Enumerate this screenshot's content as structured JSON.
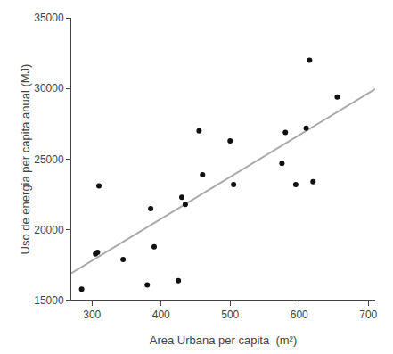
{
  "chart_data": {
    "type": "scatter",
    "xlabel": "Area Urbana per capita  (m²)",
    "ylabel": "Uso de energia per capita anual (MJ)",
    "series": [
      {
        "type": "line",
        "color": "#aaaaaa",
        "x": [
          270,
          710
        ],
        "values": [
          16927.9,
          29955.8
        ]
      },
      {
        "type": "scatter",
        "color": "#111111",
        "x": [
          285,
          305,
          308,
          310,
          345,
          380,
          385,
          390,
          425,
          430,
          435,
          455,
          460,
          500,
          505,
          575,
          580,
          595,
          610,
          615,
          620,
          655
        ],
        "values": [
          15800,
          18300,
          18400,
          23100,
          17900,
          16100,
          21500,
          18800,
          16400,
          22300,
          21800,
          27000,
          23900,
          26300,
          23200,
          24700,
          26900,
          23200,
          27200,
          32000,
          23400,
          29400
        ]
      }
    ],
    "xlim": [
      270,
      710
    ],
    "ylim": [
      15000,
      35000
    ],
    "xticks": [
      300,
      400,
      500,
      600,
      700
    ],
    "yticks": [
      15000,
      20000,
      25000,
      30000,
      35000
    ],
    "grid": false
  }
}
